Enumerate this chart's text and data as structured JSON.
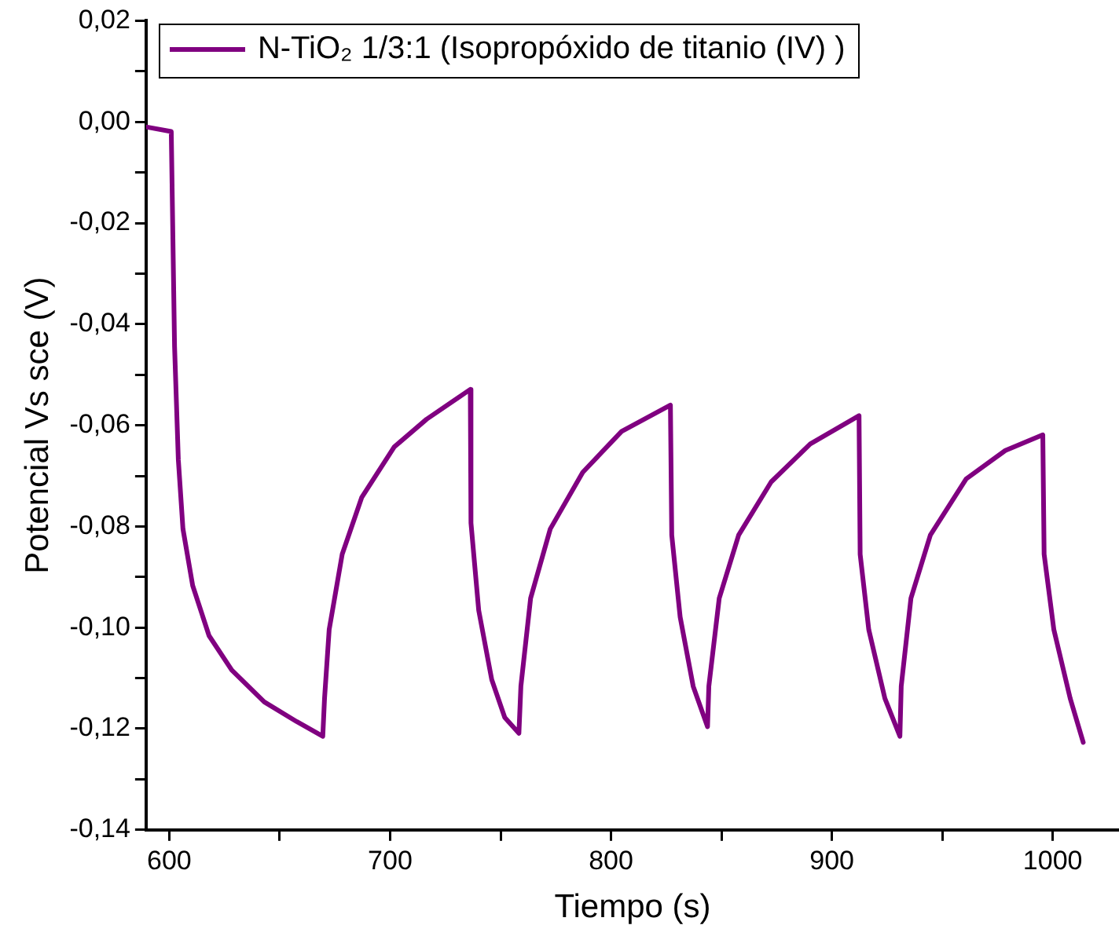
{
  "chart_data": {
    "type": "line",
    "xlabel": "Tiempo (s)",
    "ylabel": "Potencial Vs sce (V)",
    "xlim": [
      589.5,
      1030
    ],
    "ylim": [
      -0.14,
      0.02
    ],
    "xticks": [
      600,
      {
        "value": 650,
        "label": null
      },
      700,
      {
        "value": 750,
        "label": null
      },
      800,
      {
        "value": 850,
        "label": null
      },
      900,
      {
        "value": 950,
        "label": null
      },
      1000
    ],
    "yticks": [
      {
        "value": -0.14,
        "label": "-0,14"
      },
      {
        "value": -0.13,
        "label": null
      },
      {
        "value": -0.12,
        "label": "-0,12"
      },
      {
        "value": -0.11,
        "label": null
      },
      {
        "value": -0.1,
        "label": "-0,10"
      },
      {
        "value": -0.09,
        "label": null
      },
      {
        "value": -0.08,
        "label": "-0,08"
      },
      {
        "value": -0.07,
        "label": null
      },
      {
        "value": -0.06,
        "label": "-0,06"
      },
      {
        "value": -0.05,
        "label": null
      },
      {
        "value": -0.04,
        "label": "-0,04"
      },
      {
        "value": -0.03,
        "label": null
      },
      {
        "value": -0.02,
        "label": "-0,02"
      },
      {
        "value": -0.01,
        "label": null
      },
      {
        "value": 0,
        "label": "0,00"
      },
      {
        "value": 0.01,
        "label": null
      },
      {
        "value": 0.02,
        "label": "0,02"
      }
    ],
    "grid": false,
    "legend": "top left",
    "marker": "none",
    "line_style": "solid",
    "series": [
      {
        "name": "N-TiO₂ 1/3:1 (Isopropóxido de titanio (IV) )",
        "color": "#800080",
        "x": [
          589.5,
          600.9,
          602.4,
          604.1,
          606.2,
          610.6,
          618,
          628.3,
          643,
          657.7,
          669.5,
          670.3,
          672.4,
          678.3,
          687.1,
          701.8,
          716.5,
          736.3,
          736.6,
          740.1,
          746,
          751.9,
          758.3,
          759.2,
          763.6,
          772.5,
          787.2,
          804.8,
          826.9,
          827.5,
          831.3,
          837.2,
          843.7,
          844.3,
          849,
          857.8,
          872.5,
          890.2,
          912.3,
          912.8,
          916.7,
          924,
          930.8,
          931.4,
          935.8,
          944.6,
          960.8,
          978.5,
          995.5,
          996.1,
          1000.5,
          1007.9,
          1013.8
        ],
        "values": [
          -0.001,
          -0.0019,
          -0.0445,
          -0.0668,
          -0.0805,
          -0.0917,
          -0.1016,
          -0.1084,
          -0.1147,
          -0.1186,
          -0.1215,
          -0.114,
          -0.1004,
          -0.0855,
          -0.0743,
          -0.0643,
          -0.0588,
          -0.0529,
          -0.0793,
          -0.0966,
          -0.1103,
          -0.1178,
          -0.1209,
          -0.1116,
          -0.0942,
          -0.0805,
          -0.0693,
          -0.0612,
          -0.056,
          -0.0817,
          -0.0979,
          -0.1116,
          -0.1196,
          -0.1116,
          -0.0942,
          -0.0817,
          -0.0712,
          -0.0637,
          -0.0581,
          -0.0855,
          -0.1004,
          -0.114,
          -0.1215,
          -0.1116,
          -0.0942,
          -0.0817,
          -0.0706,
          -0.065,
          -0.0619,
          -0.0855,
          -0.1004,
          -0.114,
          -0.1227
        ]
      }
    ]
  }
}
